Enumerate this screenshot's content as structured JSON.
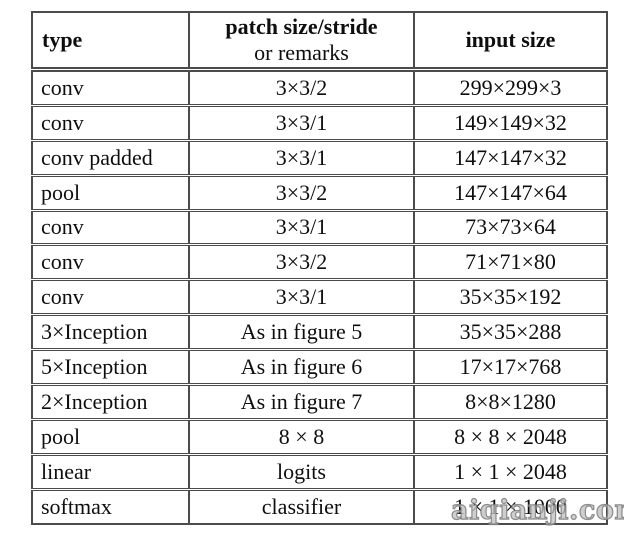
{
  "colors": {
    "border": "#4b4b4b",
    "text": "#0e0e0e",
    "watermark_gray": "#8a8a8a",
    "background": "#ffffff"
  },
  "table": {
    "headers": {
      "type": "type",
      "patch_line1": "patch size/stride",
      "patch_line2": "or remarks",
      "input": "input size"
    },
    "rows": [
      {
        "type": "conv",
        "patch": "3×3/2",
        "input": "299×299×3"
      },
      {
        "type": "conv",
        "patch": "3×3/1",
        "input": "149×149×32"
      },
      {
        "type": "conv padded",
        "patch": "3×3/1",
        "input": "147×147×32"
      },
      {
        "type": "pool",
        "patch": "3×3/2",
        "input": "147×147×64"
      },
      {
        "type": "conv",
        "patch": "3×3/1",
        "input": "73×73×64"
      },
      {
        "type": "conv",
        "patch": "3×3/2",
        "input": "71×71×80"
      },
      {
        "type": "conv",
        "patch": "3×3/1",
        "input": "35×35×192"
      },
      {
        "type": "3×Inception",
        "patch": "As in figure 5",
        "input": "35×35×288"
      },
      {
        "type": "5×Inception",
        "patch": "As in figure 6",
        "input": "17×17×768"
      },
      {
        "type": "2×Inception",
        "patch": "As in figure 7",
        "input": "8×8×1280"
      },
      {
        "type": "pool",
        "patch": "8 × 8",
        "input": "8 × 8 × 2048"
      },
      {
        "type": "linear",
        "patch": "logits",
        "input": "1 × 1 × 2048"
      },
      {
        "type": "softmax",
        "patch": "classifier",
        "input": "1 × 1 × 1000"
      }
    ]
  },
  "watermark": {
    "text": "aiqianji.com"
  }
}
